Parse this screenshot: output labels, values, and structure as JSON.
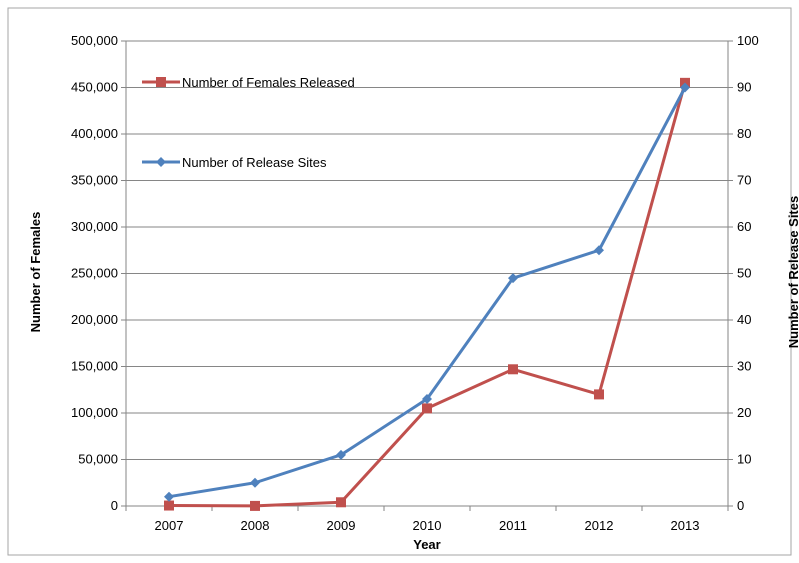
{
  "chart_data": {
    "type": "line",
    "xlabel": "Year",
    "ylabel": "Number of Females",
    "y2label": "Number of Release Sites",
    "categories": [
      "2007",
      "2008",
      "2009",
      "2010",
      "2011",
      "2012",
      "2013"
    ],
    "ylim": [
      0,
      500000
    ],
    "y2lim": [
      0,
      100
    ],
    "yticks": [
      "0",
      "50,000",
      "100,000",
      "150,000",
      "200,000",
      "250,000",
      "300,000",
      "350,000",
      "400,000",
      "450,000",
      "500,000"
    ],
    "y2ticks": [
      "0",
      "10",
      "20",
      "30",
      "40",
      "50",
      "60",
      "70",
      "80",
      "90",
      "100"
    ],
    "grid": true,
    "legend_position": "top-left",
    "series": [
      {
        "name": "Number of Females Released",
        "axis": "left",
        "marker": "square",
        "color": "#c0504d",
        "values": [
          500,
          100,
          4000,
          105000,
          147000,
          120000,
          455000
        ]
      },
      {
        "name": "Number of Release Sites",
        "axis": "right",
        "marker": "diamond",
        "color": "#4f81bd",
        "values": [
          2,
          5,
          11,
          23,
          49,
          55,
          90
        ]
      }
    ]
  }
}
